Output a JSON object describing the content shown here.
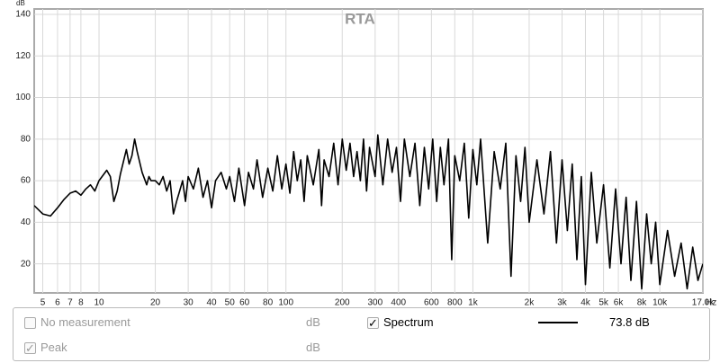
{
  "chart_data": {
    "type": "line",
    "title": "RTA",
    "y_label": "dB",
    "x_label": "Hz",
    "log_x": true,
    "grid": true,
    "xlim": [
      4.5,
      17000
    ],
    "ylim": [
      6,
      142.6
    ],
    "xticks": [
      5,
      6,
      7,
      8,
      10,
      20,
      30,
      40,
      50,
      60,
      80,
      100,
      200,
      300,
      400,
      600,
      800,
      {
        "value": 1000,
        "label": "1k"
      },
      {
        "value": 2000,
        "label": "2k"
      },
      {
        "value": 3000,
        "label": "3k"
      },
      {
        "value": 4000,
        "label": "4k"
      },
      {
        "value": 5000,
        "label": "5k"
      },
      {
        "value": 6000,
        "label": "6k"
      },
      {
        "value": 8000,
        "label": "8k"
      },
      {
        "value": 10000,
        "label": "10k"
      },
      {
        "value": 17000,
        "label": "17.0k"
      }
    ],
    "yticks": [
      20,
      40,
      60,
      80,
      100,
      120,
      140
    ],
    "x": [
      4.5,
      5,
      5.5,
      6,
      6.5,
      7,
      7.5,
      8,
      8.5,
      9,
      9.5,
      10,
      11,
      11.5,
      12,
      12.5,
      13,
      14,
      14.5,
      15,
      15.5,
      16,
      17,
      18,
      18.5,
      19,
      20,
      21,
      22,
      23,
      24,
      25,
      26,
      27,
      28,
      29,
      30,
      32,
      34,
      36,
      38,
      40,
      42,
      45,
      48,
      50,
      53,
      56,
      60,
      63,
      67,
      70,
      75,
      80,
      85,
      90,
      95,
      100,
      105,
      110,
      115,
      120,
      125,
      130,
      140,
      150,
      155,
      160,
      170,
      180,
      190,
      200,
      210,
      220,
      230,
      240,
      250,
      260,
      270,
      280,
      300,
      310,
      330,
      350,
      370,
      390,
      410,
      430,
      460,
      490,
      520,
      550,
      580,
      610,
      640,
      670,
      700,
      740,
      770,
      800,
      850,
      900,
      950,
      1000,
      1050,
      1100,
      1200,
      1300,
      1400,
      1500,
      1600,
      1700,
      1800,
      1900,
      2000,
      2200,
      2400,
      2600,
      2800,
      3000,
      3200,
      3400,
      3600,
      3800,
      4000,
      4300,
      4600,
      5000,
      5400,
      5800,
      6200,
      6600,
      7000,
      7500,
      8000,
      8500,
      9000,
      9500,
      10000,
      11000,
      12000,
      13000,
      14000,
      15000,
      16000,
      17000
    ],
    "series": [
      {
        "name": "Spectrum",
        "color": "#000000",
        "values": [
          48,
          44,
          43,
          47,
          51,
          54,
          55,
          53,
          56,
          58,
          55,
          60,
          65,
          62,
          50,
          55,
          63,
          75,
          68,
          72,
          80,
          74,
          64,
          58,
          62,
          60,
          60,
          58,
          62,
          55,
          60,
          44,
          50,
          55,
          60,
          50,
          62,
          56,
          66,
          52,
          60,
          47,
          60,
          64,
          56,
          62,
          50,
          66,
          48,
          64,
          56,
          70,
          52,
          66,
          55,
          72,
          56,
          68,
          54,
          74,
          60,
          70,
          50,
          72,
          58,
          75,
          48,
          70,
          62,
          78,
          58,
          80,
          65,
          78,
          62,
          74,
          60,
          80,
          55,
          76,
          62,
          82,
          58,
          80,
          64,
          76,
          50,
          80,
          62,
          78,
          48,
          76,
          56,
          80,
          50,
          76,
          58,
          80,
          22,
          72,
          60,
          78,
          42,
          75,
          58,
          80,
          30,
          74,
          56,
          78,
          14,
          72,
          50,
          76,
          40,
          70,
          44,
          74,
          30,
          70,
          36,
          68,
          22,
          62,
          10,
          64,
          30,
          58,
          18,
          56,
          20,
          52,
          12,
          50,
          8,
          44,
          20,
          40,
          10,
          36,
          14,
          30,
          8,
          28,
          12,
          20
        ]
      }
    ]
  },
  "legend_panel": {
    "rows": [
      {
        "label": "No measurement",
        "checked": false,
        "enabled": false,
        "unit": "dB"
      },
      {
        "checked": true,
        "enabled": true,
        "reading": "73.8 dB"
      },
      {
        "label": "Peak",
        "checked": true,
        "enabled": false,
        "unit": "dB"
      }
    ]
  }
}
